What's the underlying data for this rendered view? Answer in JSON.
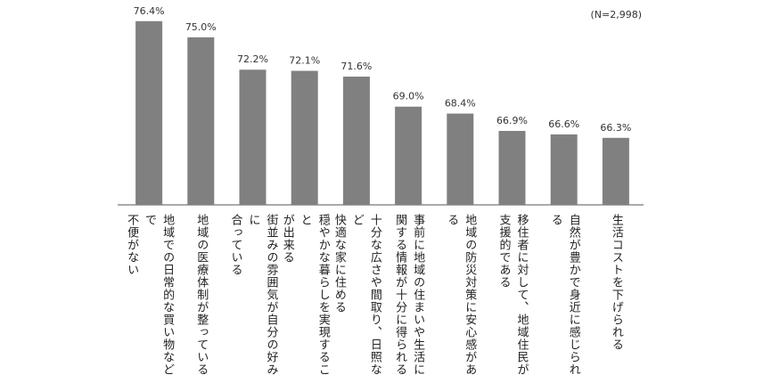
{
  "chart_data": {
    "type": "bar",
    "note": "(N=2,998)",
    "categories": [
      "地域での日常的な買い物などで\n不便がない",
      "地域の医療体制が整っている",
      "街並みの雰囲気が自分の好みに\n合っている",
      "穏やかな暮らしを実現すること\nが出来る",
      "十分な広さや間取り、日照など\n快適な家に住める",
      "事前に地域の住まいや生活に\n関する情報が十分に得られる",
      "地域の防災対策に安心感がある",
      "移住者に対して、地域住民が\n支援的である",
      "自然が豊かで身近に感じられる",
      "生活コストを下げられる"
    ],
    "values": [
      76.4,
      75.0,
      72.2,
      72.1,
      71.6,
      69.0,
      68.4,
      66.9,
      66.6,
      66.3
    ],
    "value_labels": [
      "76.4%",
      "75.0%",
      "72.2%",
      "72.1%",
      "71.6%",
      "69.0%",
      "68.4%",
      "66.9%",
      "66.6%",
      "66.3%"
    ],
    "color": "#808080",
    "ylim": [
      60.5,
      78
    ]
  }
}
